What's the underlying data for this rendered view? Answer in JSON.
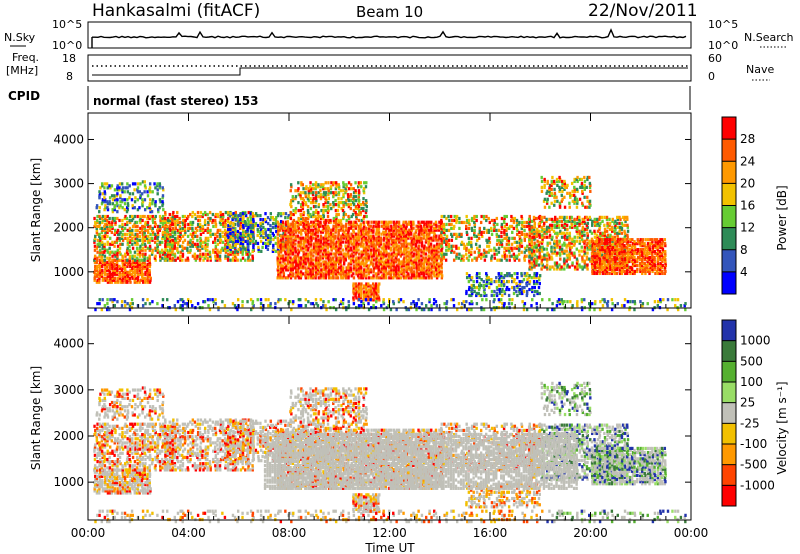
{
  "header": {
    "radar": "Hankasalmi (fitACF)",
    "beam": "Beam 10",
    "date": "22/Nov/2011"
  },
  "noise_panel": {
    "label_left": "N.Sky",
    "label_right": "N.Search",
    "left_ticks": [
      "10^5",
      "10^0"
    ],
    "right_ticks": [
      "10^5",
      "10^0"
    ]
  },
  "freq_panel": {
    "label_left_1": "Freq.",
    "label_left_2": "[MHz]",
    "left_ticks": [
      "18",
      "8"
    ],
    "label_right": "Nave",
    "right_ticks": [
      "60",
      "0"
    ]
  },
  "cpid": {
    "label": "CPID",
    "text": "normal (fast stereo) 153"
  },
  "chart_data": [
    {
      "type": "heatmap",
      "parameter": "power",
      "ylabel": "Slant Range [km]",
      "y_ticks": [
        "4000",
        "3000",
        "2000",
        "1000"
      ],
      "ylim": [
        180,
        4600
      ],
      "colorbar": {
        "label": "Power [dB]",
        "ticks": [
          "28",
          "24",
          "20",
          "16",
          "12",
          "8",
          "4"
        ],
        "colors": [
          "#ff0000",
          "#ff5a00",
          "#ff9900",
          "#f2c200",
          "#66cc33",
          "#2e8b57",
          "#3355bb",
          "#0000ff"
        ]
      }
    },
    {
      "type": "heatmap",
      "parameter": "velocity",
      "ylabel": "Slant Range [km]",
      "y_ticks": [
        "4000",
        "3000",
        "2000",
        "1000"
      ],
      "ylim": [
        180,
        4600
      ],
      "colorbar": {
        "label": "Velocity [m s⁻¹]",
        "ticks": [
          "1000",
          "500",
          "100",
          "25",
          "-25",
          "-100",
          "-500",
          "-1000"
        ],
        "colors": [
          "#2233aa",
          "#3a7a3a",
          "#55b030",
          "#99dd66",
          "#c0c0b8",
          "#f2c000",
          "#ff9900",
          "#ff4400",
          "#ff0000"
        ]
      }
    }
  ],
  "time_axis": {
    "label": "Time UT",
    "ticks": [
      "00:00",
      "04:00",
      "08:00",
      "12:00",
      "16:00",
      "20:00",
      "00:00"
    ]
  },
  "colors": {
    "ground_scatter": "#c0c0b8",
    "axis": "#000000"
  }
}
